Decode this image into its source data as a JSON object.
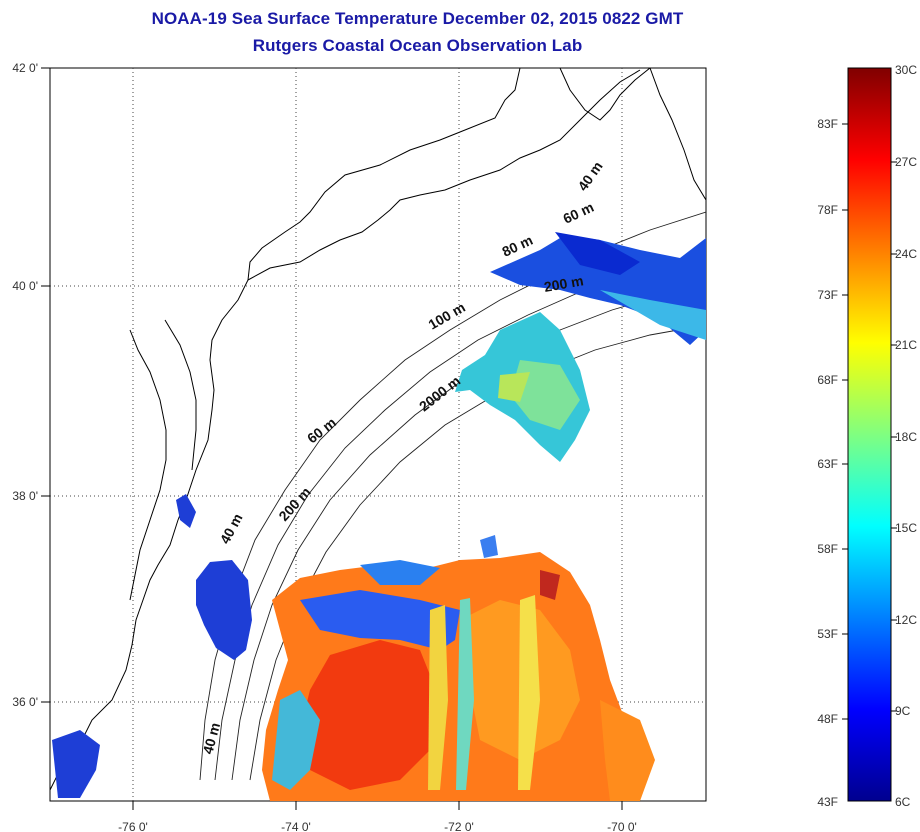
{
  "title": "NOAA-19 Sea Surface Temperature December 02, 2015 0822 GMT",
  "subtitle": "Rutgers Coastal Ocean Observation Lab",
  "longitude_ticks": [
    "-76 0'",
    "-74 0'",
    "-72 0'",
    "-70 0'"
  ],
  "latitude_ticks": [
    "42 0'",
    "40 0'",
    "38 0'",
    "36 0'"
  ],
  "depth_contours": [
    "40 m",
    "60 m",
    "80 m",
    "200 m",
    "100 m",
    "2000 m",
    "60 m",
    "200 m",
    "40 m",
    "40 m"
  ],
  "colorbar": {
    "fahrenheit": [
      "83F",
      "78F",
      "73F",
      "68F",
      "63F",
      "58F",
      "53F",
      "48F",
      "43F"
    ],
    "celsius": [
      "30C",
      "27C",
      "24C",
      "21C",
      "18C",
      "15C",
      "12C",
      "9C",
      "6C"
    ],
    "colors": [
      "#800000",
      "#ff0000",
      "#ff8000",
      "#ffff00",
      "#80ff80",
      "#00ffff",
      "#0080ff",
      "#0000ff",
      "#00008f"
    ]
  }
}
